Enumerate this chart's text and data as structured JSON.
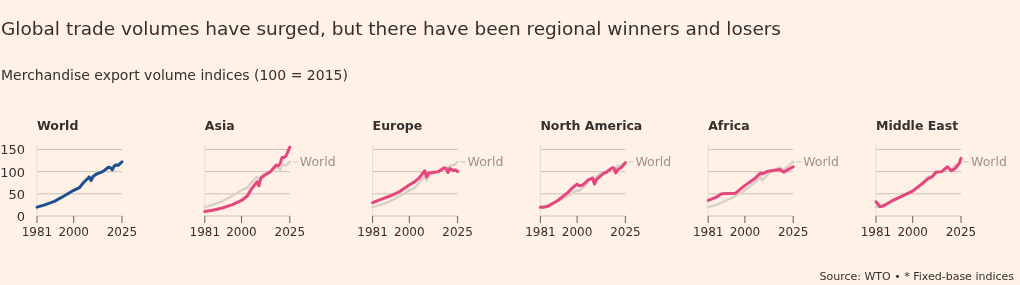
{
  "chart_data": [
    {
      "type": "other",
      "title": "Global trade volumes have surged, but there have been regional winners and losers",
      "subtitle": "Merchandise export volume indices (100 = 2015)",
      "annotations": [
        "Source: WTO • * Fixed-base indices"
      ]
    },
    {
      "type": "line",
      "title": "World",
      "x": [
        1981,
        1985,
        1990,
        1995,
        2000,
        2003,
        2005,
        2008,
        2009,
        2010,
        2012,
        2015,
        2018,
        2019,
        2020,
        2021,
        2022,
        2023,
        2024,
        2025
      ],
      "series": [
        {
          "color": "#1d4f91",
          "values": [
            20,
            25,
            33,
            45,
            58,
            64,
            75,
            88,
            80,
            89,
            95,
            100,
            110,
            109,
            104,
            113,
            115,
            114,
            118,
            122
          ]
        }
      ],
      "xlim": [
        1981,
        2025
      ],
      "xticks": [
        1981,
        2000,
        2025
      ],
      "ylim": [
        0,
        160
      ],
      "yticks": [
        0,
        50,
        100,
        150
      ],
      "grid": "y"
    },
    {
      "type": "line",
      "title": "Asia",
      "x": [
        1981,
        1985,
        1990,
        1995,
        2000,
        2003,
        2005,
        2008,
        2009,
        2010,
        2012,
        2015,
        2018,
        2019,
        2020,
        2021,
        2022,
        2023,
        2024,
        2025
      ],
      "series": [
        {
          "name": "World",
          "color": "#d9d1c9",
          "values": [
            20,
            25,
            33,
            45,
            58,
            64,
            75,
            88,
            80,
            89,
            95,
            100,
            110,
            109,
            104,
            113,
            115,
            114,
            118,
            122
          ]
        },
        {
          "color": "#e6457e",
          "values": [
            10,
            13,
            18,
            25,
            35,
            45,
            60,
            77,
            68,
            85,
            92,
            100,
            115,
            113,
            118,
            132,
            132,
            135,
            145,
            155
          ]
        }
      ],
      "xlim": [
        1981,
        2025
      ],
      "xticks": [
        1981,
        2000,
        2025
      ],
      "ylim": [
        0,
        160
      ],
      "yticks": [
        0,
        50,
        100,
        150
      ],
      "grid": "y",
      "legend": "right",
      "tick_labels": "x"
    },
    {
      "type": "line",
      "title": "Europe",
      "x": [
        1981,
        1985,
        1990,
        1995,
        2000,
        2003,
        2005,
        2008,
        2009,
        2010,
        2012,
        2015,
        2018,
        2019,
        2020,
        2021,
        2022,
        2023,
        2024,
        2025
      ],
      "series": [
        {
          "name": "World",
          "color": "#d9d1c9",
          "values": [
            20,
            25,
            33,
            45,
            58,
            64,
            75,
            88,
            80,
            89,
            95,
            100,
            110,
            109,
            104,
            113,
            115,
            114,
            118,
            122
          ]
        },
        {
          "color": "#e6457e",
          "values": [
            30,
            37,
            45,
            55,
            70,
            78,
            85,
            102,
            88,
            97,
            98,
            100,
            108,
            107,
            98,
            107,
            105,
            102,
            104,
            100
          ]
        }
      ],
      "xlim": [
        1981,
        2025
      ],
      "xticks": [
        1981,
        2000,
        2025
      ],
      "ylim": [
        0,
        160
      ],
      "yticks": [
        0,
        50,
        100,
        150
      ],
      "grid": "y",
      "legend": "right",
      "tick_labels": "x"
    },
    {
      "type": "line",
      "title": "North America",
      "x": [
        1981,
        1983,
        1985,
        1990,
        1995,
        1998,
        2000,
        2001,
        2003,
        2006,
        2008,
        2009,
        2010,
        2012,
        2014,
        2015,
        2018,
        2019,
        2020,
        2021,
        2023,
        2025
      ],
      "series": [
        {
          "name": "World",
          "color": "#d9d1c9",
          "values": [
            20,
            22,
            25,
            33,
            45,
            53,
            58,
            57,
            64,
            80,
            88,
            80,
            89,
            95,
            99,
            100,
            110,
            109,
            104,
            113,
            114,
            122
          ]
        },
        {
          "color": "#e6457e",
          "values": [
            20,
            20,
            22,
            35,
            52,
            65,
            72,
            68,
            70,
            82,
            85,
            72,
            82,
            90,
            97,
            98,
            108,
            108,
            97,
            104,
            110,
            120
          ]
        }
      ],
      "xlim": [
        1981,
        2025
      ],
      "xticks": [
        1981,
        2000,
        2025
      ],
      "ylim": [
        0,
        160
      ],
      "yticks": [
        0,
        50,
        100,
        150
      ],
      "grid": "y",
      "legend": "right",
      "tick_labels": "x"
    },
    {
      "type": "line",
      "title": "Africa",
      "x": [
        1981,
        1985,
        1988,
        1995,
        2000,
        2005,
        2008,
        2009,
        2012,
        2018,
        2020,
        2025
      ],
      "series": [
        {
          "name": "World",
          "color": "#d9d1c9",
          "values": [
            20,
            25,
            30,
            45,
            58,
            75,
            88,
            80,
            95,
            110,
            104,
            122
          ]
        },
        {
          "color": "#e6457e",
          "values": [
            35,
            42,
            50,
            51,
            69,
            84,
            97,
            95,
            101,
            105,
            99,
            111
          ]
        }
      ],
      "xlim": [
        1981,
        2025
      ],
      "xticks": [
        1981,
        2000,
        2025
      ],
      "ylim": [
        0,
        160
      ],
      "yticks": [
        0,
        50,
        100,
        150
      ],
      "grid": "y",
      "legend": "right",
      "tick_labels": "x"
    },
    {
      "type": "line",
      "title": "Middle East",
      "x": [
        1981,
        1983,
        1985,
        1990,
        1995,
        2000,
        2005,
        2008,
        2010,
        2012,
        2015,
        2018,
        2020,
        2022,
        2024,
        2025
      ],
      "series": [
        {
          "name": "World",
          "color": "#d9d1c9",
          "values": [
            20,
            22,
            25,
            33,
            45,
            58,
            75,
            88,
            89,
            95,
            100,
            110,
            104,
            115,
            118,
            122
          ]
        },
        {
          "color": "#e6457e",
          "values": [
            32,
            21,
            23,
            36,
            46,
            56,
            73,
            84,
            88,
            99,
            100,
            111,
            102,
            107,
            118,
            130
          ]
        }
      ],
      "xlim": [
        1981,
        2025
      ],
      "xticks": [
        1981,
        2000,
        2025
      ],
      "ylim": [
        0,
        160
      ],
      "yticks": [
        0,
        50,
        100,
        150
      ],
      "grid": "y",
      "legend": "right",
      "tick_labels": "x"
    }
  ]
}
